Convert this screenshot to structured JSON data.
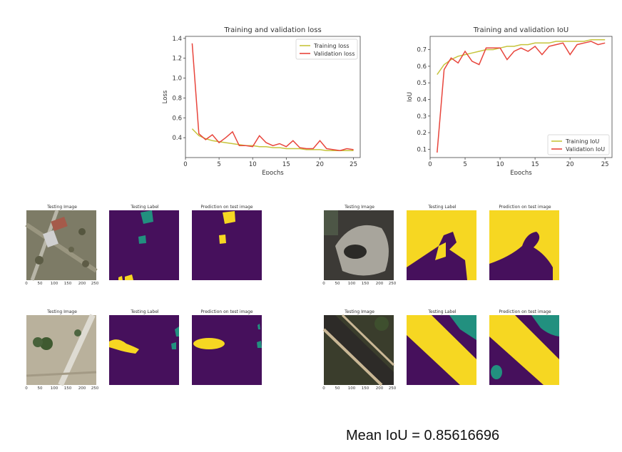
{
  "chart_data": [
    {
      "type": "line",
      "title": "Training and validation loss",
      "xlabel": "Epochs",
      "ylabel": "Loss",
      "xlim": [
        0,
        26
      ],
      "ylim": [
        0.2,
        1.42
      ],
      "xticks": [
        0,
        5,
        10,
        15,
        20,
        25
      ],
      "yticks": [
        0.4,
        0.6,
        0.8,
        1.0,
        1.2,
        1.4
      ],
      "legend_position": "top-right",
      "series": [
        {
          "name": "Training loss",
          "color": "#c6c43c",
          "x": [
            1,
            2,
            3,
            4,
            5,
            6,
            7,
            8,
            9,
            10,
            11,
            12,
            13,
            14,
            15,
            16,
            17,
            18,
            19,
            20,
            21,
            22,
            23,
            24,
            25
          ],
          "values": [
            0.49,
            0.42,
            0.39,
            0.37,
            0.36,
            0.35,
            0.34,
            0.33,
            0.32,
            0.32,
            0.31,
            0.31,
            0.3,
            0.3,
            0.29,
            0.29,
            0.29,
            0.28,
            0.28,
            0.28,
            0.27,
            0.27,
            0.27,
            0.27,
            0.27
          ]
        },
        {
          "name": "Validation loss",
          "color": "#e8453c",
          "x": [
            1,
            2,
            3,
            4,
            5,
            6,
            7,
            8,
            9,
            10,
            11,
            12,
            13,
            14,
            15,
            16,
            17,
            18,
            19,
            20,
            21,
            22,
            23,
            24,
            25
          ],
          "values": [
            1.35,
            0.44,
            0.38,
            0.43,
            0.35,
            0.4,
            0.46,
            0.32,
            0.32,
            0.31,
            0.42,
            0.35,
            0.32,
            0.34,
            0.31,
            0.37,
            0.3,
            0.29,
            0.29,
            0.37,
            0.29,
            0.28,
            0.27,
            0.29,
            0.28
          ]
        }
      ]
    },
    {
      "type": "line",
      "title": "Training and validation IoU",
      "xlabel": "Epochs",
      "ylabel": "IoU",
      "xlim": [
        0,
        26
      ],
      "ylim": [
        0.05,
        0.78
      ],
      "xticks": [
        0,
        5,
        10,
        15,
        20,
        25
      ],
      "yticks": [
        0.1,
        0.2,
        0.3,
        0.4,
        0.5,
        0.6,
        0.7
      ],
      "legend_position": "bottom-right",
      "series": [
        {
          "name": "Training IoU",
          "color": "#c6c43c",
          "x": [
            1,
            2,
            3,
            4,
            5,
            6,
            7,
            8,
            9,
            10,
            11,
            12,
            13,
            14,
            15,
            16,
            17,
            18,
            19,
            20,
            21,
            22,
            23,
            24,
            25
          ],
          "values": [
            0.55,
            0.61,
            0.64,
            0.66,
            0.67,
            0.68,
            0.69,
            0.7,
            0.7,
            0.71,
            0.72,
            0.72,
            0.73,
            0.73,
            0.74,
            0.74,
            0.74,
            0.75,
            0.75,
            0.75,
            0.75,
            0.75,
            0.76,
            0.76,
            0.76
          ]
        },
        {
          "name": "Validation IoU",
          "color": "#e8453c",
          "x": [
            1,
            2,
            3,
            4,
            5,
            6,
            7,
            8,
            9,
            10,
            11,
            12,
            13,
            14,
            15,
            16,
            17,
            18,
            19,
            20,
            21,
            22,
            23,
            24,
            25
          ],
          "values": [
            0.08,
            0.58,
            0.65,
            0.62,
            0.69,
            0.63,
            0.61,
            0.71,
            0.71,
            0.71,
            0.64,
            0.69,
            0.71,
            0.69,
            0.72,
            0.67,
            0.72,
            0.73,
            0.74,
            0.67,
            0.73,
            0.74,
            0.75,
            0.73,
            0.74
          ]
        }
      ]
    }
  ],
  "segmentation_panels": {
    "titles": [
      "Testing Image",
      "Testing Label",
      "Prediction on test image"
    ],
    "ticks": [
      "0",
      "50",
      "100",
      "150",
      "200",
      "250"
    ]
  },
  "result": {
    "mean_iou_text": "Mean IoU = 0.85616696"
  },
  "colors": {
    "purple": "#46105c",
    "yellow": "#f6d722",
    "teal": "#22907f"
  }
}
